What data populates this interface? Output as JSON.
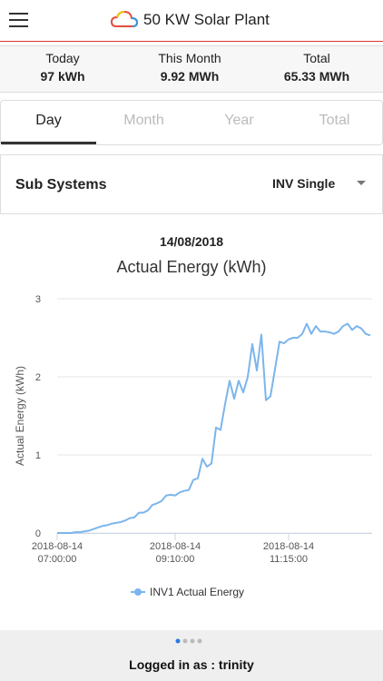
{
  "header": {
    "title": "50 KW Solar Plant"
  },
  "stats": [
    {
      "label": "Today",
      "value": "97 kWh"
    },
    {
      "label": "This Month",
      "value": "9.92 MWh"
    },
    {
      "label": "Total",
      "value": "65.33 MWh"
    }
  ],
  "tabs": [
    "Day",
    "Month",
    "Year",
    "Total"
  ],
  "selector": {
    "label": "Sub Systems",
    "value": "INV Single"
  },
  "date": "14/08/2018",
  "chart_data": {
    "type": "line",
    "title": "Actual Energy (kWh)",
    "y_label": "Actual Energy (kWh)",
    "x": [
      "2018-08-14 07:00:00",
      "2018-08-14 07:05:00",
      "2018-08-14 07:10:00",
      "2018-08-14 07:15:00",
      "2018-08-14 07:20:00",
      "2018-08-14 07:25:00",
      "2018-08-14 07:30:00",
      "2018-08-14 07:35:00",
      "2018-08-14 07:40:00",
      "2018-08-14 07:45:00",
      "2018-08-14 07:50:00",
      "2018-08-14 07:55:00",
      "2018-08-14 08:00:00",
      "2018-08-14 08:05:00",
      "2018-08-14 08:10:00",
      "2018-08-14 08:15:00",
      "2018-08-14 08:20:00",
      "2018-08-14 08:25:00",
      "2018-08-14 08:30:00",
      "2018-08-14 08:35:00",
      "2018-08-14 08:40:00",
      "2018-08-14 08:45:00",
      "2018-08-14 08:50:00",
      "2018-08-14 08:55:00",
      "2018-08-14 09:00:00",
      "2018-08-14 09:05:00",
      "2018-08-14 09:10:00",
      "2018-08-14 09:15:00",
      "2018-08-14 09:20:00",
      "2018-08-14 09:25:00",
      "2018-08-14 09:30:00",
      "2018-08-14 09:35:00",
      "2018-08-14 09:40:00",
      "2018-08-14 09:45:00",
      "2018-08-14 09:50:00",
      "2018-08-14 09:55:00",
      "2018-08-14 10:00:00",
      "2018-08-14 10:05:00",
      "2018-08-14 10:10:00",
      "2018-08-14 10:15:00",
      "2018-08-14 10:20:00",
      "2018-08-14 10:25:00",
      "2018-08-14 10:30:00",
      "2018-08-14 10:35:00",
      "2018-08-14 10:40:00",
      "2018-08-14 10:45:00",
      "2018-08-14 10:50:00",
      "2018-08-14 10:55:00",
      "2018-08-14 11:00:00",
      "2018-08-14 11:05:00",
      "2018-08-14 11:10:00",
      "2018-08-14 11:15:00",
      "2018-08-14 11:20:00",
      "2018-08-14 11:25:00",
      "2018-08-14 11:30:00",
      "2018-08-14 11:35:00",
      "2018-08-14 11:40:00",
      "2018-08-14 11:45:00",
      "2018-08-14 11:50:00",
      "2018-08-14 11:55:00",
      "2018-08-14 12:00:00",
      "2018-08-14 12:05:00",
      "2018-08-14 12:10:00",
      "2018-08-14 12:15:00",
      "2018-08-14 12:20:00",
      "2018-08-14 12:25:00",
      "2018-08-14 12:30:00",
      "2018-08-14 12:35:00",
      "2018-08-14 12:40:00",
      "2018-08-14 12:45:00"
    ],
    "series": [
      {
        "name": "INV1 Actual Energy",
        "color": "#7cb5ec",
        "values": [
          0,
          0,
          0,
          0,
          0.01,
          0.01,
          0.02,
          0.03,
          0.05,
          0.07,
          0.09,
          0.1,
          0.12,
          0.13,
          0.14,
          0.16,
          0.19,
          0.2,
          0.26,
          0.26,
          0.29,
          0.36,
          0.38,
          0.41,
          0.48,
          0.49,
          0.48,
          0.52,
          0.54,
          0.55,
          0.68,
          0.7,
          0.95,
          0.85,
          0.89,
          1.35,
          1.32,
          1.65,
          1.95,
          1.72,
          1.95,
          1.8,
          2.0,
          2.42,
          2.08,
          2.54,
          1.7,
          1.75,
          2.1,
          2.45,
          2.43,
          2.48,
          2.5,
          2.5,
          2.55,
          2.68,
          2.55,
          2.65,
          2.58,
          2.58,
          2.57,
          2.55,
          2.58,
          2.65,
          2.68,
          2.6,
          2.65,
          2.62,
          2.55,
          2.53
        ]
      }
    ],
    "xlim": [
      "2018-08-14 07:00:00",
      "2018-08-14 12:47:00"
    ],
    "xticks": [
      "2018-08-14 07:00:00",
      "2018-08-14 09:10:00",
      "2018-08-14 11:15:00"
    ],
    "ylim": [
      0,
      3
    ],
    "yticks": [
      0,
      1,
      2,
      3
    ],
    "grid": true,
    "legend": "bottom"
  },
  "footer": "Logged in as : trinity"
}
